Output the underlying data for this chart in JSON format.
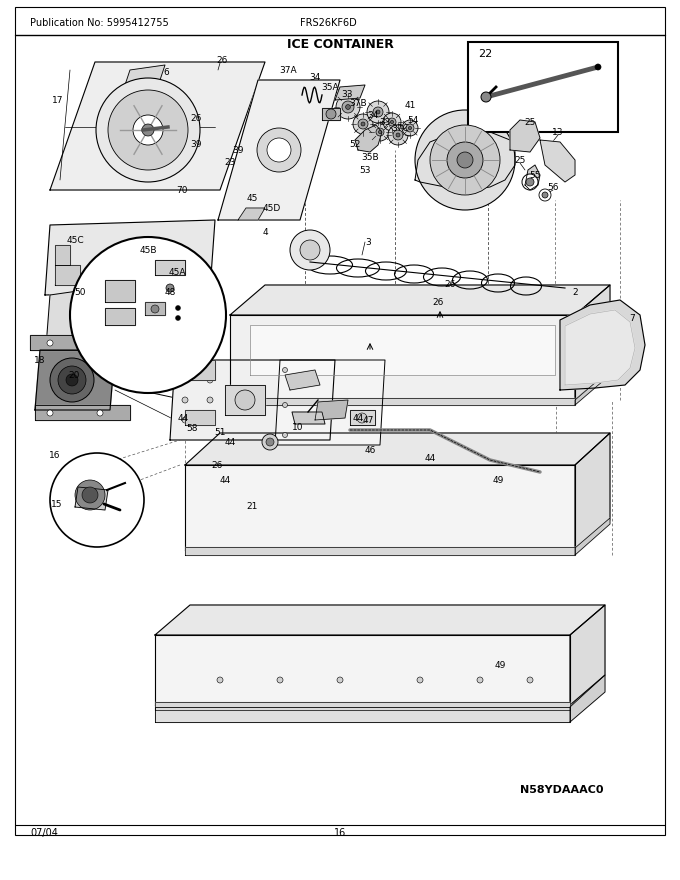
{
  "title": "ICE CONTAINER",
  "pub_no": "Publication No: 5995412755",
  "model": "FRS26KF6D",
  "date": "07/04",
  "page": "16",
  "part_code": "N58YDAAAC0",
  "bg_color": "#ffffff",
  "text_color": "#000000",
  "fig_width": 6.8,
  "fig_height": 8.8,
  "dpi": 100,
  "lc": "#000000",
  "gc": "#b0b0b0"
}
